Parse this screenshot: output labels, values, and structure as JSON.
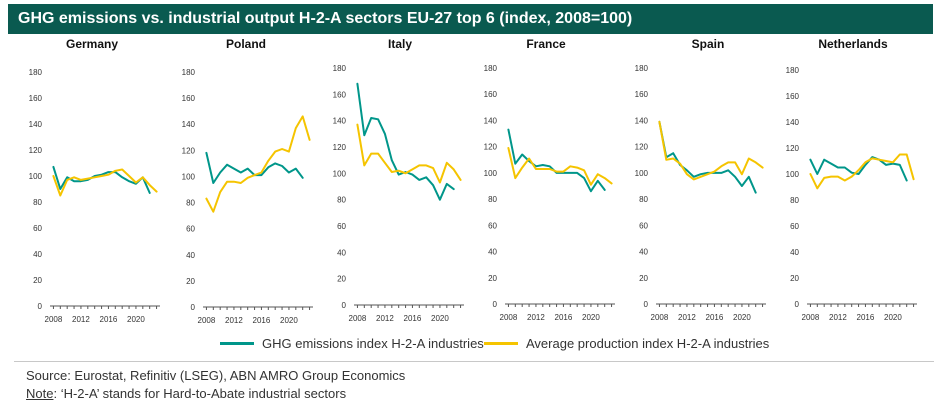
{
  "title": "GHG emissions vs. industrial output H-2-A sectors EU-27 top 6 (index, 2008=100)",
  "colors": {
    "title_bg": "#0a5a50",
    "ghg": "#00968a",
    "production": "#f5c400",
    "axis": "#555555"
  },
  "legend": {
    "ghg": "GHG emissions index H-2-A industries",
    "production": "Average production index H-2-A industries"
  },
  "source": "Source: Eurostat, Refinitiv (LSEG), ABN AMRO Group Economics",
  "note_label": "Note",
  "note_text": ": ‘H-2-A’ stands for Hard-to-Abate industrial sectors",
  "chart_data": [
    {
      "type": "line",
      "title": "Germany",
      "ylim": [
        0,
        180
      ],
      "yticks": [
        0,
        20,
        40,
        60,
        80,
        100,
        120,
        140,
        160,
        180
      ],
      "xlim": [
        2007.5,
        2023.5
      ],
      "xticks": [
        2008,
        2012,
        2016,
        2020
      ],
      "series": [
        {
          "name": "GHG emissions index H-2-A industries",
          "x": [
            2008,
            2009,
            2010,
            2011,
            2012,
            2013,
            2014,
            2015,
            2016,
            2017,
            2018,
            2019,
            2020,
            2021,
            2022
          ],
          "y": [
            107,
            90,
            99,
            96,
            96,
            97,
            100,
            101,
            103,
            103,
            99,
            96,
            94,
            99,
            87
          ]
        },
        {
          "name": "Average production index H-2-A industries",
          "x": [
            2008,
            2009,
            2010,
            2011,
            2012,
            2013,
            2014,
            2015,
            2016,
            2017,
            2018,
            2019,
            2020,
            2021,
            2022,
            2023
          ],
          "y": [
            100,
            85,
            97,
            99,
            97,
            98,
            99,
            100,
            101,
            104,
            105,
            100,
            95,
            99,
            93,
            88
          ]
        }
      ]
    },
    {
      "type": "line",
      "title": "Poland",
      "ylim": [
        0,
        180
      ],
      "yticks": [
        0,
        20,
        40,
        60,
        80,
        100,
        120,
        140,
        160,
        180
      ],
      "xlim": [
        2007.5,
        2023.5
      ],
      "xticks": [
        2008,
        2012,
        2016,
        2020
      ],
      "series": [
        {
          "name": "GHG emissions index H-2-A industries",
          "x": [
            2008,
            2009,
            2010,
            2011,
            2012,
            2013,
            2014,
            2015,
            2016,
            2017,
            2018,
            2019,
            2020,
            2021,
            2022
          ],
          "y": [
            118,
            95,
            103,
            109,
            106,
            103,
            106,
            101,
            101,
            107,
            110,
            108,
            103,
            106,
            99
          ]
        },
        {
          "name": "Average production index H-2-A industries",
          "x": [
            2008,
            2009,
            2010,
            2011,
            2012,
            2013,
            2014,
            2015,
            2016,
            2017,
            2018,
            2019,
            2020,
            2021,
            2022,
            2023
          ],
          "y": [
            83,
            73,
            88,
            96,
            96,
            95,
            99,
            101,
            103,
            112,
            119,
            121,
            119,
            137,
            146,
            128
          ]
        }
      ]
    },
    {
      "type": "line",
      "title": "Italy",
      "ylim": [
        0,
        180
      ],
      "yticks": [
        0,
        20,
        40,
        60,
        80,
        100,
        120,
        140,
        160,
        180
      ],
      "xlim": [
        2007.5,
        2023.5
      ],
      "xticks": [
        2008,
        2012,
        2016,
        2020
      ],
      "series": [
        {
          "name": "GHG emissions index H-2-A industries",
          "x": [
            2008,
            2009,
            2010,
            2011,
            2012,
            2013,
            2014,
            2015,
            2016,
            2017,
            2018,
            2019,
            2020,
            2021,
            2022
          ],
          "y": [
            168,
            129,
            142,
            141,
            130,
            110,
            99,
            101,
            99,
            95,
            97,
            91,
            80,
            92,
            88
          ]
        },
        {
          "name": "Average production index H-2-A industries",
          "x": [
            2008,
            2009,
            2010,
            2011,
            2012,
            2013,
            2014,
            2015,
            2016,
            2017,
            2018,
            2019,
            2020,
            2021,
            2022,
            2023
          ],
          "y": [
            137,
            106,
            115,
            115,
            108,
            101,
            102,
            100,
            103,
            106,
            106,
            104,
            93,
            108,
            103,
            95
          ]
        }
      ]
    },
    {
      "type": "line",
      "title": "France",
      "ylim": [
        0,
        180
      ],
      "yticks": [
        0,
        20,
        40,
        60,
        80,
        100,
        120,
        140,
        160,
        180
      ],
      "xlim": [
        2007.5,
        2023.5
      ],
      "xticks": [
        2008,
        2012,
        2016,
        2020
      ],
      "series": [
        {
          "name": "GHG emissions index H-2-A industries",
          "x": [
            2008,
            2009,
            2010,
            2011,
            2012,
            2013,
            2014,
            2015,
            2016,
            2017,
            2018,
            2019,
            2020,
            2021,
            2022
          ],
          "y": [
            133,
            107,
            114,
            109,
            105,
            106,
            105,
            100,
            100,
            100,
            100,
            96,
            86,
            94,
            87
          ]
        },
        {
          "name": "Average production index H-2-A industries",
          "x": [
            2008,
            2009,
            2010,
            2011,
            2012,
            2013,
            2014,
            2015,
            2016,
            2017,
            2018,
            2019,
            2020,
            2021,
            2022,
            2023
          ],
          "y": [
            119,
            96,
            104,
            111,
            103,
            103,
            103,
            101,
            101,
            105,
            104,
            102,
            91,
            99,
            96,
            92
          ]
        }
      ]
    },
    {
      "type": "line",
      "title": "Spain",
      "ylim": [
        0,
        180
      ],
      "yticks": [
        0,
        20,
        40,
        60,
        80,
        100,
        120,
        140,
        160,
        180
      ],
      "xlim": [
        2007.5,
        2023.5
      ],
      "xticks": [
        2008,
        2012,
        2016,
        2020
      ],
      "series": [
        {
          "name": "GHG emissions index H-2-A industries",
          "x": [
            2008,
            2009,
            2010,
            2011,
            2012,
            2013,
            2014,
            2015,
            2016,
            2017,
            2018,
            2019,
            2020,
            2021,
            2022
          ],
          "y": [
            139,
            112,
            115,
            106,
            102,
            97,
            99,
            100,
            100,
            100,
            102,
            97,
            90,
            97,
            85
          ]
        },
        {
          "name": "Average production index H-2-A industries",
          "x": [
            2008,
            2009,
            2010,
            2011,
            2012,
            2013,
            2014,
            2015,
            2016,
            2017,
            2018,
            2019,
            2020,
            2021,
            2022,
            2023
          ],
          "y": [
            139,
            110,
            111,
            107,
            99,
            95,
            97,
            99,
            101,
            105,
            108,
            108,
            99,
            111,
            108,
            104
          ]
        }
      ]
    },
    {
      "type": "line",
      "title": "Netherlands",
      "ylim": [
        0,
        180
      ],
      "yticks": [
        0,
        20,
        40,
        60,
        80,
        100,
        120,
        140,
        160,
        180
      ],
      "xlim": [
        2007.5,
        2023.5
      ],
      "xticks": [
        2008,
        2012,
        2016,
        2020
      ],
      "series": [
        {
          "name": "GHG emissions index H-2-A industries",
          "x": [
            2008,
            2009,
            2010,
            2011,
            2012,
            2013,
            2014,
            2015,
            2016,
            2017,
            2018,
            2019,
            2020,
            2021,
            2022
          ],
          "y": [
            111,
            100,
            111,
            108,
            105,
            105,
            101,
            100,
            107,
            113,
            111,
            107,
            108,
            107,
            95
          ]
        },
        {
          "name": "Average production index H-2-A industries",
          "x": [
            2008,
            2009,
            2010,
            2011,
            2012,
            2013,
            2014,
            2015,
            2016,
            2017,
            2018,
            2019,
            2020,
            2021,
            2022,
            2023
          ],
          "y": [
            100,
            89,
            97,
            98,
            98,
            95,
            98,
            103,
            109,
            112,
            111,
            110,
            109,
            115,
            115,
            96
          ]
        }
      ]
    }
  ]
}
